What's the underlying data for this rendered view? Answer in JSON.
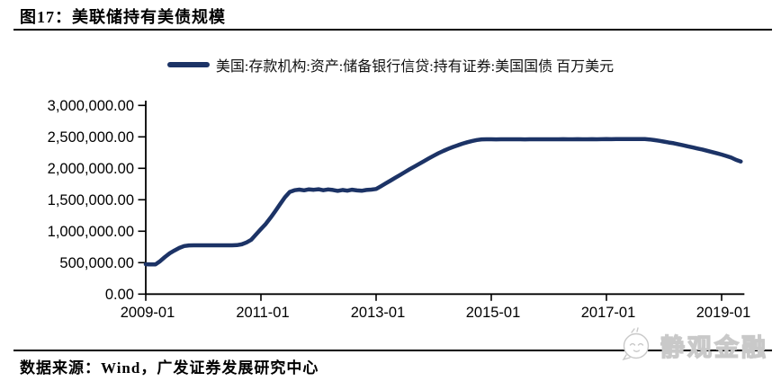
{
  "header": {
    "title": "图17：美联储持有美债规模"
  },
  "legend": {
    "label": "美国:存款机构:资产:储备银行信贷:持有证券:美国国债 百万美元"
  },
  "footer": {
    "source": "数据来源：Wind，广发证券发展研究中心",
    "watermark": "静观金融"
  },
  "colors": {
    "series_line": "#1c3366",
    "axis": "#000000",
    "watermark_gray": "#c9c9c9"
  },
  "chart_data": {
    "type": "line",
    "title": "美联储持有美债规模",
    "ylabel": "百万美元",
    "xlabel": "",
    "ylim": [
      0,
      3000000
    ],
    "grid": false,
    "legend_position": "top",
    "y_tick_values": [
      3000000,
      2500000,
      2000000,
      1500000,
      1000000,
      500000,
      0
    ],
    "y_tick_labels": [
      "3,000,000.00",
      "2,500,000.00",
      "2,000,000.00",
      "1,500,000.00",
      "1,000,000.00",
      "500,000.00",
      "0.00"
    ],
    "x_tick_labels": [
      "2009-01",
      "2011-01",
      "2013-01",
      "2015-01",
      "2017-01",
      "2019-01"
    ],
    "x_tick_month_index": [
      0,
      24,
      48,
      72,
      96,
      120
    ],
    "series": [
      {
        "name": "美国:存款机构:资产:储备银行信贷:持有证券:美国国债",
        "unit": "百万美元",
        "points": [
          [
            "2009-01",
            475000
          ],
          [
            "2009-02",
            472000
          ],
          [
            "2009-03",
            471000
          ],
          [
            "2009-04",
            525000
          ],
          [
            "2009-05",
            590000
          ],
          [
            "2009-06",
            650000
          ],
          [
            "2009-07",
            695000
          ],
          [
            "2009-08",
            735000
          ],
          [
            "2009-09",
            765000
          ],
          [
            "2009-10",
            775000
          ],
          [
            "2009-11",
            776000
          ],
          [
            "2009-12",
            776000
          ],
          [
            "2010-01",
            776000
          ],
          [
            "2010-02",
            776000
          ],
          [
            "2010-03",
            776000
          ],
          [
            "2010-04",
            776000
          ],
          [
            "2010-05",
            776000
          ],
          [
            "2010-06",
            776000
          ],
          [
            "2010-07",
            776000
          ],
          [
            "2010-08",
            778000
          ],
          [
            "2010-09",
            792000
          ],
          [
            "2010-10",
            821000
          ],
          [
            "2010-11",
            865000
          ],
          [
            "2010-12",
            950000
          ],
          [
            "2011-01",
            1035000
          ],
          [
            "2011-02",
            1115000
          ],
          [
            "2011-03",
            1215000
          ],
          [
            "2011-04",
            1320000
          ],
          [
            "2011-05",
            1430000
          ],
          [
            "2011-06",
            1540000
          ],
          [
            "2011-07",
            1625000
          ],
          [
            "2011-08",
            1652000
          ],
          [
            "2011-09",
            1662000
          ],
          [
            "2011-10",
            1650000
          ],
          [
            "2011-11",
            1666000
          ],
          [
            "2011-12",
            1658000
          ],
          [
            "2012-01",
            1667000
          ],
          [
            "2012-02",
            1652000
          ],
          [
            "2012-03",
            1664000
          ],
          [
            "2012-04",
            1656000
          ],
          [
            "2012-05",
            1642000
          ],
          [
            "2012-06",
            1655000
          ],
          [
            "2012-07",
            1645000
          ],
          [
            "2012-08",
            1660000
          ],
          [
            "2012-09",
            1648000
          ],
          [
            "2012-10",
            1643000
          ],
          [
            "2012-11",
            1655000
          ],
          [
            "2012-12",
            1662000
          ],
          [
            "2013-01",
            1672000
          ],
          [
            "2013-02",
            1715000
          ],
          [
            "2013-03",
            1760000
          ],
          [
            "2013-04",
            1805000
          ],
          [
            "2013-05",
            1850000
          ],
          [
            "2013-06",
            1895000
          ],
          [
            "2013-07",
            1940000
          ],
          [
            "2013-08",
            1985000
          ],
          [
            "2013-09",
            2028000
          ],
          [
            "2013-10",
            2072000
          ],
          [
            "2013-11",
            2115000
          ],
          [
            "2013-12",
            2158000
          ],
          [
            "2014-01",
            2200000
          ],
          [
            "2014-02",
            2240000
          ],
          [
            "2014-03",
            2276000
          ],
          [
            "2014-04",
            2308000
          ],
          [
            "2014-05",
            2338000
          ],
          [
            "2014-06",
            2366000
          ],
          [
            "2014-07",
            2392000
          ],
          [
            "2014-08",
            2414000
          ],
          [
            "2014-09",
            2434000
          ],
          [
            "2014-10",
            2450000
          ],
          [
            "2014-11",
            2460000
          ],
          [
            "2014-12",
            2461000
          ],
          [
            "2015-01",
            2461000
          ],
          [
            "2015-02",
            2460000
          ],
          [
            "2015-03",
            2461000
          ],
          [
            "2015-04",
            2462000
          ],
          [
            "2015-05",
            2461000
          ],
          [
            "2015-06",
            2462000
          ],
          [
            "2015-07",
            2461000
          ],
          [
            "2015-08",
            2460000
          ],
          [
            "2015-09",
            2461000
          ],
          [
            "2015-10",
            2462000
          ],
          [
            "2015-11",
            2461000
          ],
          [
            "2015-12",
            2462000
          ],
          [
            "2016-01",
            2461000
          ],
          [
            "2016-02",
            2462000
          ],
          [
            "2016-03",
            2461000
          ],
          [
            "2016-04",
            2463000
          ],
          [
            "2016-05",
            2462000
          ],
          [
            "2016-06",
            2461000
          ],
          [
            "2016-07",
            2463000
          ],
          [
            "2016-08",
            2462000
          ],
          [
            "2016-09",
            2461000
          ],
          [
            "2016-10",
            2463000
          ],
          [
            "2016-11",
            2462000
          ],
          [
            "2016-12",
            2463000
          ],
          [
            "2017-01",
            2464000
          ],
          [
            "2017-02",
            2463000
          ],
          [
            "2017-03",
            2464000
          ],
          [
            "2017-04",
            2465000
          ],
          [
            "2017-05",
            2464000
          ],
          [
            "2017-06",
            2465000
          ],
          [
            "2017-07",
            2464000
          ],
          [
            "2017-08",
            2465000
          ],
          [
            "2017-09",
            2464000
          ],
          [
            "2017-10",
            2458000
          ],
          [
            "2017-11",
            2448000
          ],
          [
            "2017-12",
            2437000
          ],
          [
            "2018-01",
            2424000
          ],
          [
            "2018-02",
            2410000
          ],
          [
            "2018-03",
            2398000
          ],
          [
            "2018-04",
            2382000
          ],
          [
            "2018-05",
            2366000
          ],
          [
            "2018-06",
            2348000
          ],
          [
            "2018-07",
            2332000
          ],
          [
            "2018-08",
            2314000
          ],
          [
            "2018-09",
            2298000
          ],
          [
            "2018-10",
            2278000
          ],
          [
            "2018-11",
            2258000
          ],
          [
            "2018-12",
            2238000
          ],
          [
            "2019-01",
            2218000
          ],
          [
            "2019-02",
            2196000
          ],
          [
            "2019-03",
            2170000
          ],
          [
            "2019-04",
            2135000
          ],
          [
            "2019-05",
            2108000
          ]
        ]
      }
    ]
  }
}
